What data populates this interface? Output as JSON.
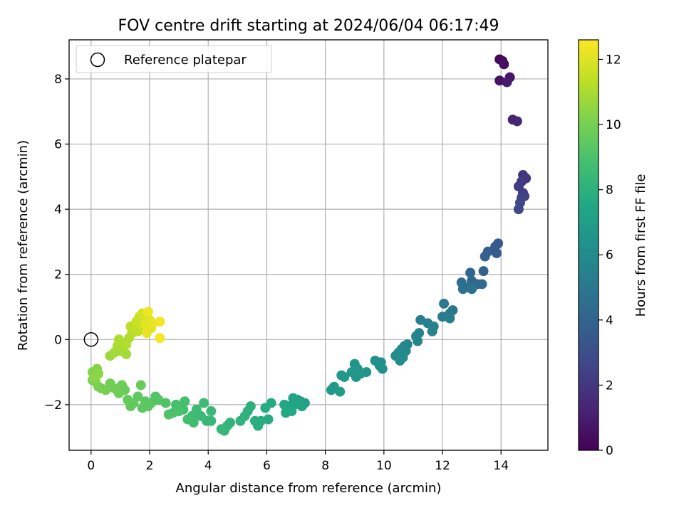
{
  "chart_data": {
    "type": "scatter",
    "title": "FOV centre drift starting at 2024/06/04 06:17:49",
    "xlabel": "Angular distance from reference (arcmin)",
    "ylabel": "Rotation from reference (arcmin)",
    "xlim": [
      -0.75,
      15.6
    ],
    "ylim": [
      -3.4,
      9.2
    ],
    "xticks": [
      0,
      2,
      4,
      6,
      8,
      10,
      12,
      14
    ],
    "yticks": [
      -2,
      0,
      2,
      4,
      6,
      8
    ],
    "xtick_labels": [
      "0",
      "2",
      "4",
      "6",
      "8",
      "10",
      "12",
      "14"
    ],
    "ytick_labels": [
      "−2",
      "0",
      "2",
      "4",
      "6",
      "8"
    ],
    "grid": true,
    "legend": {
      "position": "top-left",
      "entries": [
        {
          "label": "Reference platepar",
          "marker": "open-circle"
        }
      ]
    },
    "reference_point": {
      "x": 0,
      "y": 0
    },
    "colorbar": {
      "label": "Hours from first FF file",
      "colormap": "viridis",
      "range": [
        0,
        12.6
      ],
      "ticks": [
        0,
        2,
        4,
        6,
        8,
        10,
        12
      ],
      "tick_labels": [
        "0",
        "2",
        "4",
        "6",
        "8",
        "10",
        "12"
      ]
    },
    "points": [
      {
        "x": 13.95,
        "y": 8.6,
        "c": 0.2
      },
      {
        "x": 14.05,
        "y": 8.55,
        "c": 0.35
      },
      {
        "x": 14.1,
        "y": 8.45,
        "c": 0.5
      },
      {
        "x": 13.95,
        "y": 7.95,
        "c": 0.65
      },
      {
        "x": 14.3,
        "y": 8.05,
        "c": 0.8
      },
      {
        "x": 14.2,
        "y": 7.9,
        "c": 0.95
      },
      {
        "x": 14.4,
        "y": 6.75,
        "c": 1.2
      },
      {
        "x": 14.55,
        "y": 6.7,
        "c": 1.4
      },
      {
        "x": 14.75,
        "y": 5.05,
        "c": 1.9
      },
      {
        "x": 14.85,
        "y": 4.95,
        "c": 2.0
      },
      {
        "x": 14.7,
        "y": 4.85,
        "c": 2.1
      },
      {
        "x": 14.6,
        "y": 4.7,
        "c": 2.2
      },
      {
        "x": 14.75,
        "y": 4.5,
        "c": 2.3
      },
      {
        "x": 14.8,
        "y": 4.4,
        "c": 2.4
      },
      {
        "x": 14.7,
        "y": 4.35,
        "c": 2.5
      },
      {
        "x": 14.65,
        "y": 4.2,
        "c": 2.6
      },
      {
        "x": 14.6,
        "y": 4.0,
        "c": 2.7
      },
      {
        "x": 13.9,
        "y": 2.95,
        "c": 3.5
      },
      {
        "x": 13.8,
        "y": 2.85,
        "c": 3.6
      },
      {
        "x": 13.85,
        "y": 2.65,
        "c": 3.7
      },
      {
        "x": 13.55,
        "y": 2.7,
        "c": 3.8
      },
      {
        "x": 13.45,
        "y": 2.55,
        "c": 3.9
      },
      {
        "x": 13.4,
        "y": 2.1,
        "c": 4.0
      },
      {
        "x": 12.95,
        "y": 2.05,
        "c": 4.1
      },
      {
        "x": 13.0,
        "y": 1.8,
        "c": 4.2
      },
      {
        "x": 13.2,
        "y": 1.7,
        "c": 4.3
      },
      {
        "x": 13.35,
        "y": 1.7,
        "c": 4.4
      },
      {
        "x": 12.65,
        "y": 1.75,
        "c": 4.5
      },
      {
        "x": 12.9,
        "y": 1.6,
        "c": 4.6
      },
      {
        "x": 12.7,
        "y": 1.55,
        "c": 4.7
      },
      {
        "x": 13.0,
        "y": 1.55,
        "c": 4.8
      },
      {
        "x": 12.35,
        "y": 0.9,
        "c": 4.9
      },
      {
        "x": 12.25,
        "y": 0.8,
        "c": 5.0
      },
      {
        "x": 12.05,
        "y": 1.1,
        "c": 5.1
      },
      {
        "x": 12.0,
        "y": 0.7,
        "c": 5.2
      },
      {
        "x": 12.25,
        "y": 0.65,
        "c": 5.3
      },
      {
        "x": 11.25,
        "y": 0.6,
        "c": 5.4
      },
      {
        "x": 11.5,
        "y": 0.5,
        "c": 5.45
      },
      {
        "x": 11.7,
        "y": 0.4,
        "c": 5.5
      },
      {
        "x": 11.65,
        "y": 0.25,
        "c": 5.55
      },
      {
        "x": 11.2,
        "y": 0.2,
        "c": 5.6
      },
      {
        "x": 11.1,
        "y": 0.1,
        "c": 5.65
      },
      {
        "x": 11.15,
        "y": -0.05,
        "c": 5.7
      },
      {
        "x": 10.8,
        "y": -0.15,
        "c": 5.75
      },
      {
        "x": 10.7,
        "y": -0.2,
        "c": 5.8
      },
      {
        "x": 10.6,
        "y": -0.3,
        "c": 5.85
      },
      {
        "x": 10.75,
        "y": -0.35,
        "c": 5.9
      },
      {
        "x": 10.5,
        "y": -0.4,
        "c": 5.95
      },
      {
        "x": 10.4,
        "y": -0.5,
        "c": 6.0
      },
      {
        "x": 10.65,
        "y": -0.55,
        "c": 6.05
      },
      {
        "x": 10.55,
        "y": -0.65,
        "c": 6.1
      },
      {
        "x": 9.9,
        "y": -0.7,
        "c": 6.15
      },
      {
        "x": 9.7,
        "y": -0.65,
        "c": 6.2
      },
      {
        "x": 9.85,
        "y": -0.8,
        "c": 6.25
      },
      {
        "x": 9.95,
        "y": -0.9,
        "c": 6.3
      },
      {
        "x": 9.0,
        "y": -0.75,
        "c": 6.4
      },
      {
        "x": 9.1,
        "y": -0.9,
        "c": 6.45
      },
      {
        "x": 9.4,
        "y": -1.0,
        "c": 6.5
      },
      {
        "x": 9.2,
        "y": -1.05,
        "c": 6.55
      },
      {
        "x": 8.9,
        "y": -1.0,
        "c": 6.6
      },
      {
        "x": 9.05,
        "y": -1.15,
        "c": 6.65
      },
      {
        "x": 8.55,
        "y": -1.1,
        "c": 6.7
      },
      {
        "x": 8.65,
        "y": -1.15,
        "c": 6.75
      },
      {
        "x": 8.3,
        "y": -1.45,
        "c": 6.8
      },
      {
        "x": 8.2,
        "y": -1.55,
        "c": 6.85
      },
      {
        "x": 8.5,
        "y": -1.6,
        "c": 6.9
      },
      {
        "x": 7.3,
        "y": -1.95,
        "c": 7.1
      },
      {
        "x": 7.15,
        "y": -1.9,
        "c": 7.15
      },
      {
        "x": 7.05,
        "y": -1.85,
        "c": 7.2
      },
      {
        "x": 6.9,
        "y": -1.8,
        "c": 7.25
      },
      {
        "x": 6.95,
        "y": -2.0,
        "c": 7.3
      },
      {
        "x": 7.2,
        "y": -2.05,
        "c": 7.35
      },
      {
        "x": 6.75,
        "y": -2.05,
        "c": 7.4
      },
      {
        "x": 6.6,
        "y": -2.0,
        "c": 7.45
      },
      {
        "x": 6.7,
        "y": -2.15,
        "c": 7.5
      },
      {
        "x": 6.85,
        "y": -2.2,
        "c": 7.55
      },
      {
        "x": 6.65,
        "y": -2.25,
        "c": 7.6
      },
      {
        "x": 6.15,
        "y": -1.95,
        "c": 7.65
      },
      {
        "x": 5.95,
        "y": -2.1,
        "c": 7.7
      },
      {
        "x": 6.05,
        "y": -2.45,
        "c": 7.75
      },
      {
        "x": 5.8,
        "y": -2.5,
        "c": 7.8
      },
      {
        "x": 5.7,
        "y": -2.65,
        "c": 7.85
      },
      {
        "x": 5.6,
        "y": -2.5,
        "c": 7.9
      },
      {
        "x": 5.45,
        "y": -2.05,
        "c": 7.95
      },
      {
        "x": 5.35,
        "y": -2.2,
        "c": 8.0
      },
      {
        "x": 5.25,
        "y": -2.35,
        "c": 8.05
      },
      {
        "x": 5.1,
        "y": -2.5,
        "c": 8.1
      },
      {
        "x": 4.75,
        "y": -2.55,
        "c": 8.15
      },
      {
        "x": 4.65,
        "y": -2.65,
        "c": 8.2
      },
      {
        "x": 4.55,
        "y": -2.8,
        "c": 8.25
      },
      {
        "x": 4.45,
        "y": -2.75,
        "c": 8.3
      },
      {
        "x": 4.1,
        "y": -2.5,
        "c": 8.35
      },
      {
        "x": 3.95,
        "y": -2.5,
        "c": 8.4
      },
      {
        "x": 4.1,
        "y": -2.2,
        "c": 8.45
      },
      {
        "x": 3.75,
        "y": -2.35,
        "c": 8.5
      },
      {
        "x": 3.85,
        "y": -1.95,
        "c": 8.55
      },
      {
        "x": 3.6,
        "y": -2.15,
        "c": 8.6
      },
      {
        "x": 3.45,
        "y": -2.35,
        "c": 8.65
      },
      {
        "x": 3.5,
        "y": -2.55,
        "c": 8.7
      },
      {
        "x": 3.3,
        "y": -2.45,
        "c": 8.75
      },
      {
        "x": 3.15,
        "y": -2.15,
        "c": 8.8
      },
      {
        "x": 3.2,
        "y": -1.9,
        "c": 8.85
      },
      {
        "x": 2.9,
        "y": -2.0,
        "c": 8.9
      },
      {
        "x": 3.0,
        "y": -2.2,
        "c": 8.95
      },
      {
        "x": 2.8,
        "y": -2.25,
        "c": 9.0
      },
      {
        "x": 2.65,
        "y": -2.3,
        "c": 9.05
      },
      {
        "x": 2.55,
        "y": -1.95,
        "c": 9.1
      },
      {
        "x": 2.3,
        "y": -1.85,
        "c": 9.15
      },
      {
        "x": 2.2,
        "y": -1.75,
        "c": 9.2
      },
      {
        "x": 2.05,
        "y": -1.95,
        "c": 9.25
      },
      {
        "x": 1.95,
        "y": -2.05,
        "c": 9.3
      },
      {
        "x": 1.85,
        "y": -1.9,
        "c": 9.35
      },
      {
        "x": 1.75,
        "y": -2.1,
        "c": 9.4
      },
      {
        "x": 1.6,
        "y": -1.75,
        "c": 9.45
      },
      {
        "x": 1.45,
        "y": -1.95,
        "c": 9.5
      },
      {
        "x": 1.35,
        "y": -2.05,
        "c": 9.55
      },
      {
        "x": 1.25,
        "y": -1.85,
        "c": 9.6
      },
      {
        "x": 1.7,
        "y": -1.4,
        "c": 9.65
      },
      {
        "x": 1.15,
        "y": -1.55,
        "c": 9.7
      },
      {
        "x": 1.05,
        "y": -1.4,
        "c": 9.75
      },
      {
        "x": 0.95,
        "y": -1.65,
        "c": 9.8
      },
      {
        "x": 0.8,
        "y": -1.5,
        "c": 9.85
      },
      {
        "x": 0.65,
        "y": -1.35,
        "c": 9.9
      },
      {
        "x": 0.5,
        "y": -1.55,
        "c": 9.95
      },
      {
        "x": 0.35,
        "y": -1.5,
        "c": 10.0
      },
      {
        "x": 0.25,
        "y": -1.45,
        "c": 10.05
      },
      {
        "x": 0.15,
        "y": -1.3,
        "c": 10.1
      },
      {
        "x": 0.05,
        "y": -1.25,
        "c": 10.15
      },
      {
        "x": 0.1,
        "y": -1.1,
        "c": 10.2
      },
      {
        "x": 0.05,
        "y": -1.0,
        "c": 10.25
      },
      {
        "x": 0.2,
        "y": -0.9,
        "c": 10.3
      },
      {
        "x": 0.25,
        "y": -1.05,
        "c": 10.35
      },
      {
        "x": 0.15,
        "y": -1.15,
        "c": 10.4
      },
      {
        "x": 0.65,
        "y": -0.5,
        "c": 10.7
      },
      {
        "x": 0.8,
        "y": -0.4,
        "c": 10.8
      },
      {
        "x": 1.0,
        "y": -0.35,
        "c": 10.85
      },
      {
        "x": 1.2,
        "y": -0.45,
        "c": 10.9
      },
      {
        "x": 0.9,
        "y": -0.2,
        "c": 10.95
      },
      {
        "x": 1.1,
        "y": -0.1,
        "c": 11.0
      },
      {
        "x": 0.95,
        "y": 0.0,
        "c": 11.05
      },
      {
        "x": 1.3,
        "y": 0.05,
        "c": 11.1
      },
      {
        "x": 1.2,
        "y": -0.15,
        "c": 11.15
      },
      {
        "x": 1.4,
        "y": 0.2,
        "c": 11.2
      },
      {
        "x": 1.5,
        "y": 0.3,
        "c": 11.3
      },
      {
        "x": 1.35,
        "y": 0.4,
        "c": 11.35
      },
      {
        "x": 1.6,
        "y": 0.25,
        "c": 11.4
      },
      {
        "x": 1.7,
        "y": 0.4,
        "c": 11.5
      },
      {
        "x": 1.55,
        "y": 0.55,
        "c": 11.55
      },
      {
        "x": 1.65,
        "y": 0.7,
        "c": 11.6
      },
      {
        "x": 1.8,
        "y": 0.6,
        "c": 11.7
      },
      {
        "x": 1.75,
        "y": 0.8,
        "c": 11.8
      },
      {
        "x": 1.9,
        "y": 0.75,
        "c": 11.9
      },
      {
        "x": 2.0,
        "y": 0.6,
        "c": 12.0
      },
      {
        "x": 1.85,
        "y": 0.45,
        "c": 12.05
      },
      {
        "x": 2.05,
        "y": 0.35,
        "c": 12.1
      },
      {
        "x": 1.9,
        "y": 0.2,
        "c": 12.15
      },
      {
        "x": 2.1,
        "y": 0.5,
        "c": 12.2
      },
      {
        "x": 1.95,
        "y": 0.85,
        "c": 12.3
      },
      {
        "x": 2.35,
        "y": 0.55,
        "c": 12.4
      },
      {
        "x": 2.35,
        "y": 0.05,
        "c": 12.5
      }
    ]
  }
}
